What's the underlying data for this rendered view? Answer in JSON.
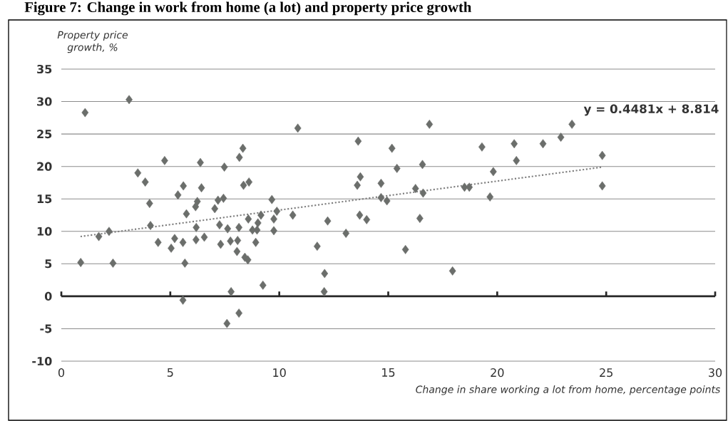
{
  "chart_data": {
    "type": "scatter",
    "title": "Figure 7: Change in work from home (a lot) and property price growth",
    "xlabel": "Change in share working a lot from home, percentage points",
    "ylabel": "Property price growth, %",
    "xlim": [
      0,
      30
    ],
    "xticks": [
      0,
      5,
      10,
      15,
      20,
      25,
      30
    ],
    "ylim": [
      -10,
      35
    ],
    "yticks": [
      -10,
      -5,
      0,
      5,
      10,
      15,
      20,
      25,
      30,
      35
    ],
    "grid": "y",
    "marker": "diamond",
    "annotations": [
      "y = 0.4481x  + 8.814"
    ],
    "series": [
      {
        "type": "scatter",
        "color": "#6b6e6b",
        "x": [
          1.09,
          3.11,
          4.74,
          6.38,
          7.48,
          8.33,
          8.17,
          3.51,
          3.85,
          5.6,
          5.35,
          6.43,
          8.36,
          8.61,
          4.05,
          6.24,
          6.16,
          7.19,
          7.44,
          7.04,
          9.66,
          5.74,
          4.09,
          6.19,
          7.26,
          7.63,
          8.15,
          8.58,
          9.16,
          9.02,
          8.77,
          8.98,
          9.75,
          9.89,
          9.75,
          1.72,
          2.19,
          0.89,
          2.37,
          4.44,
          5.04,
          5.2,
          5.58,
          6.18,
          6.56,
          7.31,
          7.76,
          8.09,
          8.06,
          8.42,
          8.56,
          8.92,
          5.67,
          9.25,
          7.79,
          5.58,
          8.15,
          7.6,
          10.85,
          13.62,
          15.17,
          16.89,
          19.3,
          15.4,
          16.57,
          19.82,
          13.72,
          13.58,
          14.67,
          16.25,
          16.6,
          18.5,
          18.72,
          14.67,
          14.94,
          19.67,
          10.62,
          12.22,
          13.69,
          14.01,
          16.45,
          13.06,
          11.74,
          15.79,
          12.08,
          17.95,
          12.06,
          20.78,
          22.1,
          22.92,
          23.43,
          20.88,
          24.82,
          24.82
        ],
        "values": [
          28.3,
          30.3,
          20.9,
          20.6,
          19.9,
          22.8,
          21.4,
          19.0,
          17.6,
          17.0,
          15.6,
          16.7,
          17.1,
          17.6,
          14.3,
          14.6,
          13.8,
          14.8,
          15.1,
          13.5,
          14.9,
          12.7,
          10.9,
          10.6,
          11.0,
          10.4,
          10.6,
          11.9,
          12.5,
          11.3,
          10.2,
          10.2,
          11.9,
          13.1,
          10.1,
          9.2,
          10.0,
          5.2,
          5.1,
          8.3,
          7.4,
          8.9,
          8.3,
          8.7,
          9.1,
          8.0,
          8.5,
          8.6,
          6.9,
          6.0,
          5.6,
          8.3,
          5.1,
          1.7,
          0.7,
          -0.6,
          -2.6,
          -4.2,
          25.9,
          23.9,
          22.8,
          26.5,
          23.0,
          19.7,
          20.3,
          19.2,
          18.4,
          17.1,
          17.4,
          16.6,
          15.9,
          16.8,
          16.8,
          15.2,
          14.7,
          15.3,
          12.5,
          11.6,
          12.5,
          11.8,
          12.0,
          9.7,
          7.7,
          7.2,
          3.5,
          3.9,
          0.7,
          23.5,
          23.5,
          24.5,
          26.5,
          20.9,
          21.7,
          17.0
        ]
      },
      {
        "type": "line",
        "color": "#7f7f7f",
        "line_style": "dotted",
        "marker": "none",
        "x": [
          0.88,
          24.82
        ],
        "values": [
          9.2,
          19.9
        ]
      }
    ]
  }
}
